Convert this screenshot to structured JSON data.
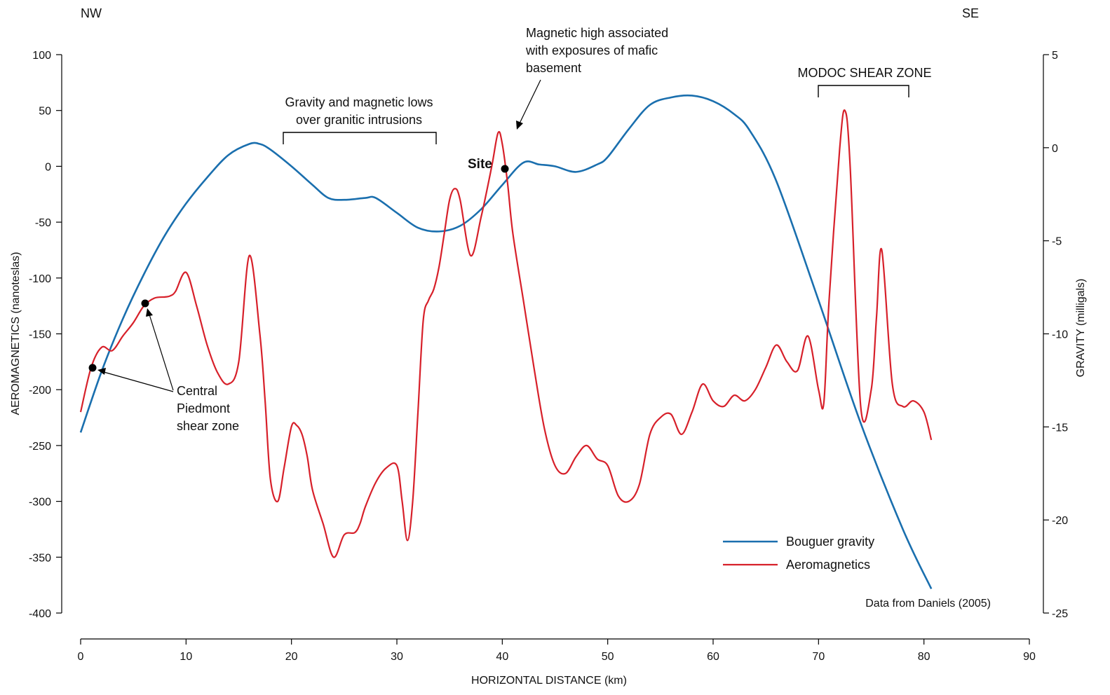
{
  "chart_data": {
    "type": "line",
    "x_axis": {
      "label": "HORIZONTAL DISTANCE (km)",
      "range": [
        0,
        90
      ],
      "ticks": [
        "0",
        "10",
        "20",
        "30",
        "40",
        "50",
        "60",
        "70",
        "80",
        "90"
      ]
    },
    "y_left": {
      "label": "AEROMAGNETICS (nanoteslas)",
      "range": [
        -400,
        100
      ],
      "ticks": [
        "100",
        "50",
        "0",
        "-50",
        "-100",
        "-150",
        "-200",
        "-250",
        "-300",
        "-350",
        "-400"
      ]
    },
    "y_right": {
      "label": "GRAVITY (milligals)",
      "range": [
        -25,
        5
      ],
      "ticks": [
        "5",
        "0",
        "-5",
        "-10",
        "-15",
        "-20",
        "-25"
      ]
    },
    "direction_labels": {
      "left": "NW",
      "right": "SE"
    },
    "legend": {
      "placement": "bottom-right"
    },
    "source_note": "Data from Daniels (2005)",
    "series": [
      {
        "name": "Bouguer gravity",
        "axis": "right",
        "color": "#1a6fae",
        "x": [
          0,
          2,
          4,
          6,
          8,
          10,
          12,
          14,
          16,
          17,
          18,
          20,
          22,
          23.5,
          25,
          27,
          28,
          30,
          32,
          34,
          36,
          38,
          40,
          42,
          43.5,
          45,
          47,
          49,
          50,
          52,
          54,
          56,
          58,
          60,
          62,
          63.5,
          66,
          70,
          74,
          78,
          80.7
        ],
        "y": [
          -15.3,
          -12,
          -9.2,
          -6.8,
          -4.7,
          -3,
          -1.6,
          -0.4,
          0.2,
          0.2,
          -0.1,
          -1,
          -2,
          -2.7,
          -2.8,
          -2.7,
          -2.7,
          -3.5,
          -4.3,
          -4.5,
          -4.2,
          -3.3,
          -2,
          -0.8,
          -0.9,
          -1,
          -1.3,
          -0.9,
          -0.5,
          1,
          2.3,
          2.7,
          2.8,
          2.5,
          1.8,
          0.9,
          -1.8,
          -8.2,
          -14.8,
          -20.5,
          -23.7
        ]
      },
      {
        "name": "Aeromagnetics",
        "axis": "left",
        "color": "#d7202a",
        "x": [
          0,
          1,
          2,
          3,
          4,
          5,
          6,
          7,
          8,
          8.5,
          9,
          10,
          11,
          12,
          13,
          14,
          15,
          16,
          17,
          17.5,
          18,
          18.7,
          19.3,
          20,
          20.5,
          21,
          21.5,
          22,
          23,
          24,
          25,
          26,
          26.5,
          27,
          28,
          29,
          30,
          30.5,
          31,
          31.5,
          32,
          32.5,
          33,
          33.5,
          34,
          34.5,
          35,
          35.5,
          36,
          37,
          38,
          39,
          39.6,
          40,
          40.5,
          41,
          42,
          43,
          44,
          45,
          46,
          47,
          48,
          49,
          50,
          51,
          52,
          53,
          54,
          55,
          56,
          57,
          58,
          59,
          60,
          61,
          62,
          63,
          64,
          65,
          66,
          67,
          68,
          69,
          70,
          70.5,
          71,
          72,
          72.5,
          73,
          74,
          75,
          75.5,
          76,
          77,
          78,
          79,
          80,
          80.7
        ],
        "y": [
          -220,
          -180,
          -162,
          -165,
          -152,
          -140,
          -125,
          -118,
          -117,
          -116,
          -112,
          -95,
          -125,
          -160,
          -185,
          -195,
          -175,
          -80,
          -150,
          -210,
          -280,
          -300,
          -270,
          -233,
          -232,
          -240,
          -260,
          -290,
          -320,
          -350,
          -330,
          -328,
          -320,
          -305,
          -283,
          -270,
          -268,
          -300,
          -335,
          -300,
          -220,
          -138,
          -120,
          -110,
          -90,
          -60,
          -30,
          -20,
          -30,
          -80,
          -45,
          0,
          30,
          20,
          -15,
          -60,
          -120,
          -180,
          -235,
          -268,
          -275,
          -260,
          -250,
          -262,
          -268,
          -295,
          -300,
          -285,
          -240,
          -225,
          -222,
          -240,
          -220,
          -195,
          -210,
          -215,
          -205,
          -210,
          -200,
          -180,
          -160,
          -175,
          -183,
          -152,
          -200,
          -212,
          -120,
          15,
          50,
          0,
          -215,
          -200,
          -135,
          -75,
          -195,
          -215,
          -210,
          -220,
          -245
        ]
      }
    ],
    "annotations": {
      "site": "Site",
      "mafic": [
        "Magnetic high associated",
        "with exposures of mafic",
        "basement"
      ],
      "granitic": [
        "Gravity and magnetic lows",
        "over granitic intrusions"
      ],
      "modoc": "MODOC SHEAR ZONE",
      "piedmont": [
        "Central",
        "Piedmont",
        "shear zone"
      ]
    }
  }
}
